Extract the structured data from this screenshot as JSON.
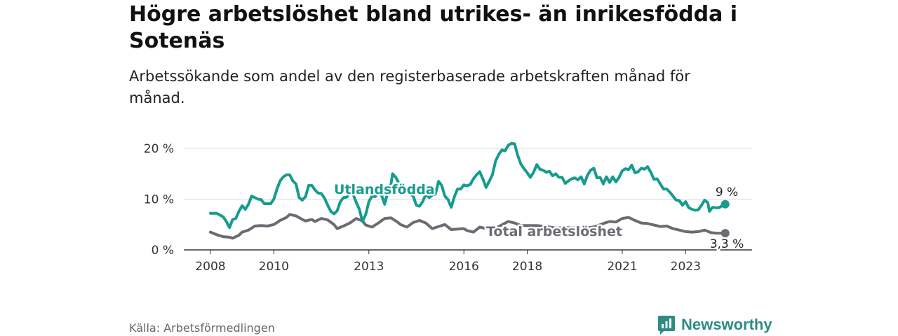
{
  "header": {
    "title": "Högre arbetslöshet bland utrikes- än inrikesfödda i Sotenäs",
    "subtitle": "Arbetssökande som andel av den registerbaserade arbetskraften månad för månad."
  },
  "footer": {
    "source": "Källa: Arbetsförmedlingen",
    "brand": "Newsworthy"
  },
  "colors": {
    "foreign_born": "#159c8f",
    "total": "#6b6b73",
    "grid": "#d9d9d9",
    "axis": "#333333",
    "brand": "#2d8c86"
  },
  "chart_data": {
    "type": "line",
    "title": "Högre arbetslöshet bland utrikes- än inrikesfödda i Sotenäs",
    "xlabel": "",
    "ylabel": "",
    "xlim": [
      2008,
      2024.3
    ],
    "ylim": [
      0,
      20
    ],
    "yticks": [
      0,
      10,
      20
    ],
    "ytick_labels": [
      "0 %",
      "10 %",
      "20 %"
    ],
    "xticks": [
      2008,
      2010,
      2013,
      2016,
      2018,
      2021,
      2023
    ],
    "xtick_labels": [
      "2008",
      "2010",
      "2013",
      "2016",
      "2018",
      "2021",
      "2023"
    ],
    "grid": true,
    "series": [
      {
        "name": "Utlandsfödda",
        "end_label": "9 %",
        "color": "#159c8f",
        "points": [
          [
            2008.0,
            7.2
          ],
          [
            2008.2,
            7.2
          ],
          [
            2008.4,
            6.5
          ],
          [
            2008.5,
            5.6
          ],
          [
            2008.6,
            4.4
          ],
          [
            2008.7,
            6.0
          ],
          [
            2008.8,
            6.2
          ],
          [
            2008.9,
            7.6
          ],
          [
            2009.0,
            8.7
          ],
          [
            2009.1,
            8.0
          ],
          [
            2009.2,
            9.0
          ],
          [
            2009.3,
            10.6
          ],
          [
            2009.5,
            10.0
          ],
          [
            2009.6,
            9.9
          ],
          [
            2009.7,
            9.1
          ],
          [
            2009.9,
            9.1
          ],
          [
            2010.0,
            10.0
          ],
          [
            2010.1,
            12.0
          ],
          [
            2010.2,
            13.6
          ],
          [
            2010.3,
            14.4
          ],
          [
            2010.4,
            14.8
          ],
          [
            2010.5,
            14.8
          ],
          [
            2010.6,
            13.6
          ],
          [
            2010.7,
            13.0
          ],
          [
            2010.8,
            10.3
          ],
          [
            2010.9,
            9.8
          ],
          [
            2011.0,
            10.5
          ],
          [
            2011.1,
            12.7
          ],
          [
            2011.2,
            12.7
          ],
          [
            2011.3,
            11.8
          ],
          [
            2011.4,
            11.2
          ],
          [
            2011.5,
            11.1
          ],
          [
            2011.6,
            10.2
          ],
          [
            2011.7,
            8.8
          ],
          [
            2011.8,
            7.6
          ],
          [
            2011.9,
            7.1
          ],
          [
            2012.0,
            7.7
          ],
          [
            2012.1,
            9.5
          ],
          [
            2012.2,
            10.3
          ],
          [
            2012.3,
            10.4
          ],
          [
            2012.4,
            11.2
          ],
          [
            2012.5,
            11.0
          ],
          [
            2012.6,
            9.4
          ],
          [
            2012.7,
            8.0
          ],
          [
            2012.8,
            5.6
          ],
          [
            2012.9,
            7.0
          ],
          [
            2013.0,
            9.5
          ],
          [
            2013.1,
            10.6
          ],
          [
            2013.2,
            10.5
          ],
          [
            2013.3,
            11.1
          ],
          [
            2013.4,
            10.8
          ],
          [
            2013.5,
            9.0
          ],
          [
            2013.6,
            11.5
          ],
          [
            2013.7,
            13.0
          ],
          [
            2013.75,
            15.0
          ],
          [
            2013.85,
            14.3
          ],
          [
            2013.95,
            13.1
          ],
          [
            2014.1,
            12.3
          ],
          [
            2014.3,
            11.0
          ],
          [
            2014.4,
            10.6
          ],
          [
            2014.5,
            8.8
          ],
          [
            2014.6,
            8.6
          ],
          [
            2014.7,
            9.5
          ],
          [
            2014.8,
            11.0
          ],
          [
            2014.9,
            10.3
          ],
          [
            2015.0,
            10.8
          ],
          [
            2015.1,
            11.0
          ],
          [
            2015.2,
            13.5
          ],
          [
            2015.3,
            12.7
          ],
          [
            2015.4,
            10.6
          ],
          [
            2015.5,
            9.9
          ],
          [
            2015.6,
            8.4
          ],
          [
            2015.7,
            10.5
          ],
          [
            2015.8,
            12.0
          ],
          [
            2015.9,
            12.0
          ],
          [
            2016.0,
            12.8
          ],
          [
            2016.1,
            12.6
          ],
          [
            2016.2,
            12.9
          ],
          [
            2016.3,
            14.0
          ],
          [
            2016.4,
            14.8
          ],
          [
            2016.5,
            15.4
          ],
          [
            2016.6,
            14.0
          ],
          [
            2016.7,
            12.3
          ],
          [
            2016.8,
            13.5
          ],
          [
            2016.9,
            14.8
          ],
          [
            2017.0,
            17.5
          ],
          [
            2017.1,
            18.8
          ],
          [
            2017.2,
            19.7
          ],
          [
            2017.3,
            19.5
          ],
          [
            2017.4,
            20.6
          ],
          [
            2017.5,
            21.0
          ],
          [
            2017.6,
            20.9
          ],
          [
            2017.7,
            18.6
          ],
          [
            2017.8,
            16.9
          ],
          [
            2017.9,
            16.0
          ],
          [
            2018.0,
            15.2
          ],
          [
            2018.1,
            14.3
          ],
          [
            2018.2,
            15.3
          ],
          [
            2018.3,
            16.8
          ],
          [
            2018.4,
            15.9
          ],
          [
            2018.5,
            15.7
          ],
          [
            2018.6,
            15.3
          ],
          [
            2018.7,
            15.5
          ],
          [
            2018.8,
            14.6
          ],
          [
            2018.9,
            15.0
          ],
          [
            2019.0,
            14.3
          ],
          [
            2019.1,
            14.3
          ],
          [
            2019.2,
            13.1
          ],
          [
            2019.3,
            13.6
          ],
          [
            2019.4,
            14.0
          ],
          [
            2019.5,
            14.2
          ],
          [
            2019.6,
            13.8
          ],
          [
            2019.7,
            14.4
          ],
          [
            2019.8,
            13.0
          ],
          [
            2019.9,
            14.7
          ],
          [
            2020.0,
            15.7
          ],
          [
            2020.1,
            16.1
          ],
          [
            2020.2,
            14.2
          ],
          [
            2020.3,
            14.3
          ],
          [
            2020.4,
            13.0
          ],
          [
            2020.5,
            14.4
          ],
          [
            2020.6,
            13.3
          ],
          [
            2020.7,
            14.4
          ],
          [
            2020.8,
            13.4
          ],
          [
            2020.9,
            14.3
          ],
          [
            2021.0,
            15.6
          ],
          [
            2021.1,
            16.0
          ],
          [
            2021.2,
            15.8
          ],
          [
            2021.3,
            16.7
          ],
          [
            2021.4,
            15.2
          ],
          [
            2021.5,
            15.4
          ],
          [
            2021.6,
            16.1
          ],
          [
            2021.7,
            15.9
          ],
          [
            2021.8,
            16.4
          ],
          [
            2021.9,
            15.3
          ],
          [
            2022.0,
            13.9
          ],
          [
            2022.1,
            14.0
          ],
          [
            2022.2,
            13.0
          ],
          [
            2022.3,
            12.0
          ],
          [
            2022.4,
            12.0
          ],
          [
            2022.5,
            11.4
          ],
          [
            2022.6,
            10.6
          ],
          [
            2022.7,
            9.8
          ],
          [
            2022.8,
            9.7
          ],
          [
            2022.9,
            8.8
          ],
          [
            2023.0,
            9.5
          ],
          [
            2023.1,
            8.3
          ],
          [
            2023.2,
            8.0
          ],
          [
            2023.3,
            7.8
          ],
          [
            2023.4,
            7.9
          ],
          [
            2023.5,
            8.8
          ],
          [
            2023.6,
            9.8
          ],
          [
            2023.7,
            9.3
          ],
          [
            2023.75,
            7.6
          ],
          [
            2023.85,
            8.4
          ],
          [
            2023.95,
            8.3
          ],
          [
            2024.05,
            8.3
          ],
          [
            2024.15,
            8.7
          ],
          [
            2024.25,
            9.0
          ]
        ]
      },
      {
        "name": "Total arbetslöshet",
        "end_label": "3,3 %",
        "color": "#6b6b73",
        "points": [
          [
            2008.0,
            3.5
          ],
          [
            2008.2,
            3.0
          ],
          [
            2008.4,
            2.6
          ],
          [
            2008.6,
            2.5
          ],
          [
            2008.7,
            2.3
          ],
          [
            2008.9,
            2.9
          ],
          [
            2009.0,
            3.5
          ],
          [
            2009.2,
            3.9
          ],
          [
            2009.4,
            4.7
          ],
          [
            2009.6,
            4.8
          ],
          [
            2009.8,
            4.7
          ],
          [
            2010.0,
            5.0
          ],
          [
            2010.2,
            5.8
          ],
          [
            2010.4,
            6.4
          ],
          [
            2010.5,
            7.0
          ],
          [
            2010.7,
            6.7
          ],
          [
            2010.9,
            6.0
          ],
          [
            2011.0,
            5.7
          ],
          [
            2011.2,
            6.0
          ],
          [
            2011.3,
            5.6
          ],
          [
            2011.5,
            6.2
          ],
          [
            2011.7,
            5.9
          ],
          [
            2011.9,
            5.0
          ],
          [
            2012.0,
            4.2
          ],
          [
            2012.2,
            4.7
          ],
          [
            2012.4,
            5.3
          ],
          [
            2012.6,
            6.2
          ],
          [
            2012.8,
            5.7
          ],
          [
            2012.9,
            4.9
          ],
          [
            2013.1,
            4.5
          ],
          [
            2013.3,
            5.3
          ],
          [
            2013.5,
            6.2
          ],
          [
            2013.7,
            6.3
          ],
          [
            2013.9,
            5.5
          ],
          [
            2014.0,
            5.0
          ],
          [
            2014.2,
            4.5
          ],
          [
            2014.4,
            5.4
          ],
          [
            2014.6,
            5.8
          ],
          [
            2014.8,
            5.3
          ],
          [
            2015.0,
            4.2
          ],
          [
            2015.2,
            4.6
          ],
          [
            2015.4,
            5.0
          ],
          [
            2015.6,
            4.0
          ],
          [
            2015.8,
            4.1
          ],
          [
            2016.0,
            4.2
          ],
          [
            2016.1,
            3.8
          ],
          [
            2016.3,
            3.5
          ],
          [
            2016.5,
            4.5
          ],
          [
            2016.7,
            4.2
          ],
          [
            2016.9,
            4.0
          ],
          [
            2017.1,
            4.6
          ],
          [
            2017.4,
            5.6
          ],
          [
            2017.6,
            5.3
          ],
          [
            2017.8,
            4.8
          ],
          [
            2018.1,
            4.8
          ],
          [
            2018.3,
            4.8
          ],
          [
            2018.6,
            4.6
          ],
          [
            2018.9,
            4.3
          ],
          [
            2019.2,
            4.4
          ],
          [
            2019.5,
            4.3
          ],
          [
            2019.8,
            4.5
          ],
          [
            2020.0,
            4.4
          ],
          [
            2020.2,
            4.7
          ],
          [
            2020.4,
            5.2
          ],
          [
            2020.6,
            5.6
          ],
          [
            2020.8,
            5.5
          ],
          [
            2021.0,
            6.2
          ],
          [
            2021.2,
            6.4
          ],
          [
            2021.4,
            5.8
          ],
          [
            2021.6,
            5.3
          ],
          [
            2021.8,
            5.2
          ],
          [
            2022.0,
            4.9
          ],
          [
            2022.2,
            4.6
          ],
          [
            2022.4,
            4.7
          ],
          [
            2022.6,
            4.2
          ],
          [
            2022.8,
            3.9
          ],
          [
            2023.0,
            3.6
          ],
          [
            2023.2,
            3.5
          ],
          [
            2023.4,
            3.6
          ],
          [
            2023.6,
            3.9
          ],
          [
            2023.8,
            3.4
          ],
          [
            2024.0,
            3.3
          ],
          [
            2024.25,
            3.3
          ]
        ]
      }
    ]
  }
}
